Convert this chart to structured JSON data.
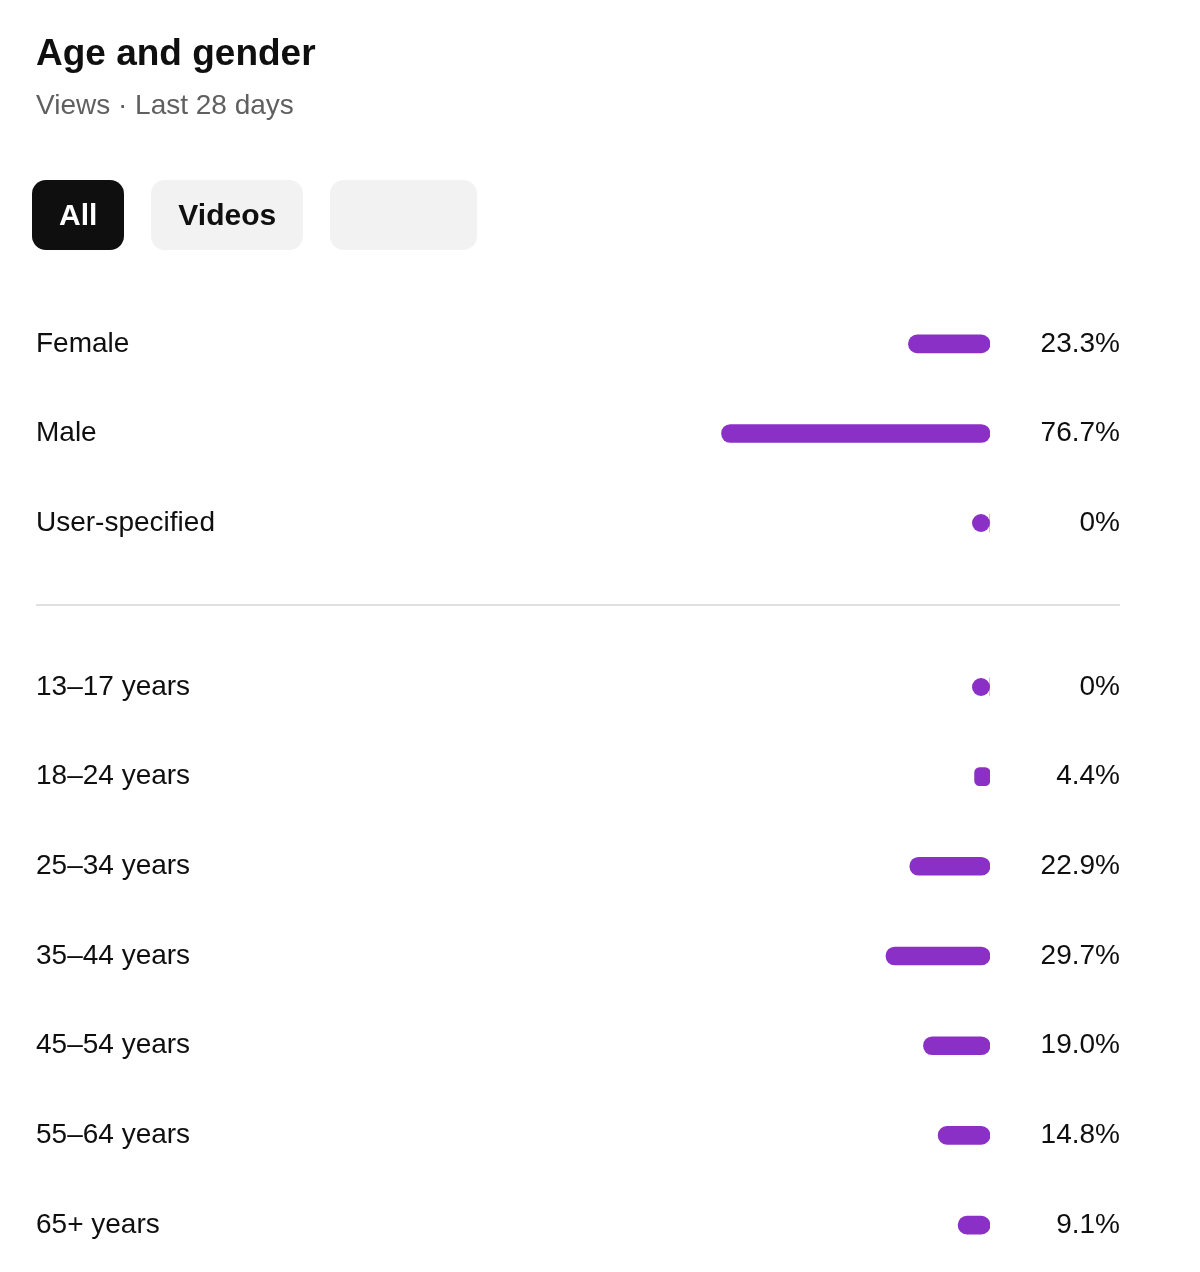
{
  "chart_data": [
    {
      "type": "bar",
      "title": "Age and gender",
      "subtitle": "Views · Last 28 days",
      "annotations": [
        "All",
        "Videos"
      ],
      "orientation": "horizontal",
      "categories": [
        "Female",
        "Male",
        "User-specified"
      ],
      "values": [
        23.3,
        76.7,
        0
      ],
      "color": "#8b30c6",
      "value_labels": [
        "23.3%",
        "76.7%",
        "0%"
      ],
      "tick_labels": "y"
    },
    {
      "type": "bar",
      "orientation": "horizontal",
      "categories": [
        "13–17 years",
        "18–24 years",
        "25–34 years",
        "35–44 years",
        "45–54 years",
        "55–64 years",
        "65+ years"
      ],
      "values": [
        0,
        4.4,
        22.9,
        29.7,
        19.0,
        14.8,
        9.1
      ],
      "color": "#8b30c6",
      "value_labels": [
        "0%",
        "4.4%",
        "22.9%",
        "29.7%",
        "19.0%",
        "14.8%",
        "9.1%"
      ],
      "tick_labels": "y"
    }
  ]
}
